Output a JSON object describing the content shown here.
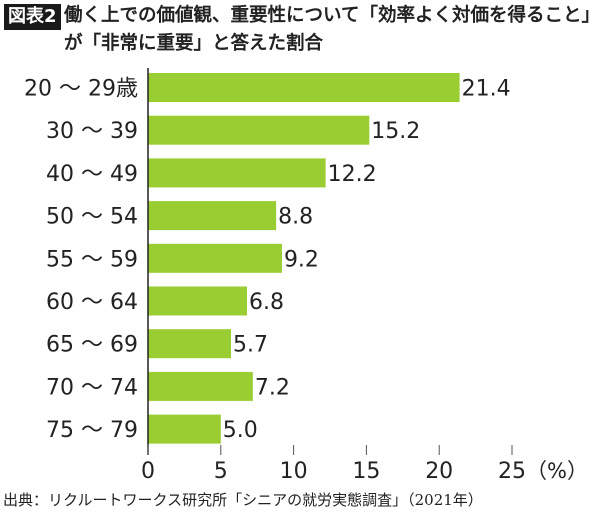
{
  "header": {
    "badge": "図表2",
    "title_line1": "働く上での価値観、重要性について「効率よく対価を得ること」",
    "title_line2": "が「非常に重要」と答えた割合"
  },
  "source": "出典：リクルートワークス研究所「シニアの就労実態調査」（2021年）",
  "chart_data": {
    "type": "bar",
    "orientation": "horizontal",
    "categories": [
      "20 〜 29歳",
      "30 〜 39",
      "40 〜 49",
      "50 〜 54",
      "55 〜 59",
      "60 〜 64",
      "65 〜 69",
      "70 〜 74",
      "75 〜 79"
    ],
    "values": [
      21.4,
      15.2,
      12.2,
      8.8,
      9.2,
      6.8,
      5.7,
      7.2,
      5.0
    ],
    "value_labels": [
      "21.4",
      "15.2",
      "12.2",
      "8.8",
      "9.2",
      "6.8",
      "5.7",
      "7.2",
      "5.0"
    ],
    "xticks": [
      "0",
      "5",
      "10",
      "15",
      "20",
      "25"
    ],
    "xunit": "（%）",
    "xlim": [
      0,
      25
    ],
    "bar_color": "#9acd32",
    "grid": false
  }
}
